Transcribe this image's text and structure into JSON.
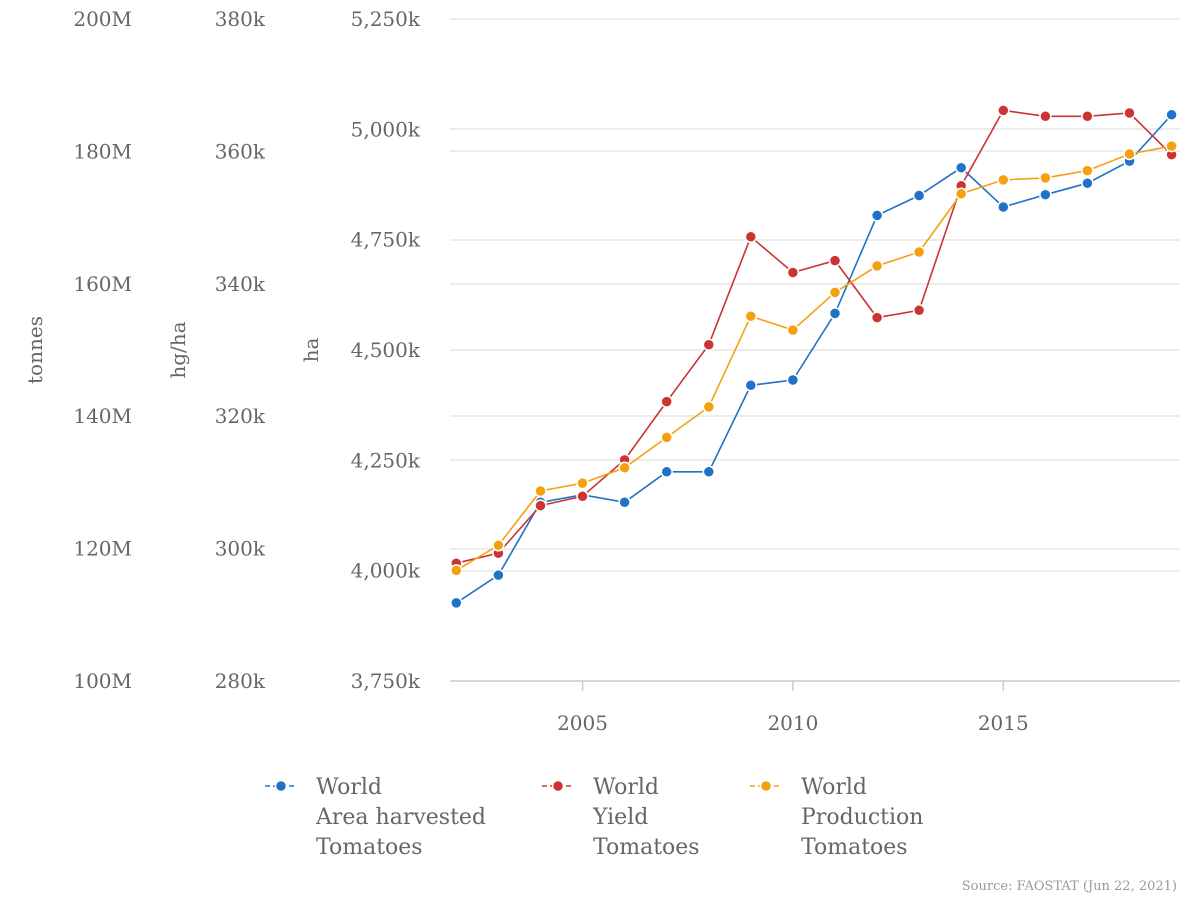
{
  "chart_data": {
    "type": "line",
    "x": [
      2002,
      2003,
      2004,
      2005,
      2006,
      2007,
      2008,
      2009,
      2010,
      2011,
      2012,
      2013,
      2014,
      2015,
      2016,
      2017,
      2018,
      2019
    ],
    "x_ticks": [
      "2005",
      "2010",
      "2015"
    ],
    "x_tick_values": [
      2005,
      2010,
      2015
    ],
    "xlim": [
      2001.85,
      2019.2
    ],
    "y_axes": [
      {
        "label": "tonnes",
        "ticks": [
          "200M",
          "180M",
          "160M",
          "140M",
          "120M",
          "100M"
        ],
        "tick_values": [
          200000000,
          180000000,
          160000000,
          140000000,
          120000000,
          100000000
        ],
        "ylim": [
          100000000,
          200000000
        ]
      },
      {
        "label": "hg/ha",
        "ticks": [
          "380k",
          "360k",
          "340k",
          "320k",
          "300k",
          "280k"
        ],
        "tick_values": [
          380000,
          360000,
          340000,
          320000,
          300000,
          280000
        ],
        "ylim": [
          280000,
          380000
        ]
      },
      {
        "label": "ha",
        "ticks": [
          "5,250k",
          "5,000k",
          "4,750k",
          "4,500k",
          "4,250k",
          "4,000k",
          "3,750k"
        ],
        "tick_values": [
          5250000,
          5000000,
          4750000,
          4500000,
          4250000,
          4000000,
          3750000
        ],
        "ylim": [
          3750000,
          5250000
        ]
      }
    ],
    "series": [
      {
        "name_lines": [
          "World",
          "Area harvested",
          "Tomatoes"
        ],
        "axis": 2,
        "color": "#1f72c8",
        "values": [
          3927000,
          3990000,
          4155000,
          4172000,
          4155000,
          4224000,
          4224000,
          4420000,
          4432000,
          4583000,
          4805000,
          4850000,
          4913000,
          4824000,
          4852000,
          4878000,
          4928000,
          5033000
        ]
      },
      {
        "name_lines": [
          "World",
          "Yield",
          "Tomatoes"
        ],
        "axis": 1,
        "color": "#cc3333",
        "values": [
          297800,
          299300,
          306500,
          307900,
          313400,
          322200,
          330800,
          347100,
          341700,
          343500,
          334900,
          336000,
          354800,
          366200,
          365300,
          365300,
          365800,
          359500
        ]
      },
      {
        "name_lines": [
          "World",
          "Production",
          "Tomatoes"
        ],
        "axis": 0,
        "color": "#f5a00f",
        "values": [
          116700,
          120500,
          128700,
          129900,
          132200,
          136800,
          141400,
          155100,
          153000,
          158700,
          162700,
          164800,
          173600,
          175700,
          176000,
          177100,
          179600,
          180800
        ]
      }
    ],
    "production_scale_note_free": true,
    "legend_position": "bottom",
    "grid": true
  },
  "source_label": "Source: FAOSTAT (Jun 22, 2021)"
}
